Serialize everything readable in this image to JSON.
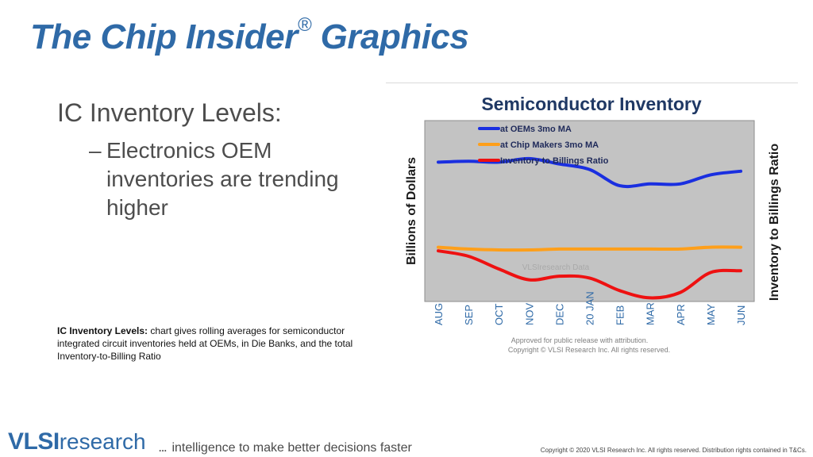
{
  "slide": {
    "title": "The Chip Insider",
    "title_mark": "®",
    "title_suffix": "Graphics",
    "bullet_main": "IC Inventory Levels:",
    "bullet_sub_dash": "–",
    "bullet_sub": "Electronics OEM inventories are trending higher",
    "caption_bold": "IC Inventory Levels:",
    "caption_text": "chart gives rolling averages for semiconductor integrated circuit inventories held at OEMs, in Die Banks, and the total Inventory-to-Billing Ratio"
  },
  "footer": {
    "logo_vlsi": "VLSI",
    "logo_research": "research",
    "tagline_dots": "...",
    "tagline": "intelligence to make better decisions faster",
    "copyright": "Copyright © 2020 VLSI Research Inc. All rights reserved. Distribution rights contained in T&Cs."
  },
  "colors": {
    "title_blue": "#2f6aa7",
    "plot_bg": "#c3c3c3",
    "oem": "#1a2fe0",
    "chipmakers": "#ff9f1a",
    "ratio": "#ee1111"
  },
  "chart_data": {
    "type": "line",
    "title": "Semiconductor Inventory",
    "ylabel_left": "Billions of Dollars",
    "ylabel_right": "Inventory  to Billings  Ratio",
    "categories": [
      "AUG",
      "SEP",
      "OCT",
      "NOV",
      "DEC",
      "20 JAN",
      "FEB",
      "MAR",
      "APR",
      "MAY",
      "JUN"
    ],
    "ylim": [
      0,
      100
    ],
    "grid": false,
    "legend_position": "top-left",
    "watermark": "VLSIresearch Data",
    "note_line1": "Approved  for public release  with attribution.",
    "note_line2": "Copyright ©  VLSI Research Inc.  All rights reserved.",
    "series": [
      {
        "name": "at OEMs 3mo MA",
        "values": [
          77,
          77.5,
          77,
          79,
          76,
          73,
          64,
          65,
          65,
          70,
          72
        ]
      },
      {
        "name": "at Chip Makers 3mo MA",
        "values": [
          30,
          29,
          28.5,
          28.5,
          29,
          29,
          29,
          29,
          29,
          30,
          30
        ]
      },
      {
        "name": "Inventory to Billings Ratio",
        "values": [
          28,
          25,
          18,
          12,
          14,
          13,
          6,
          2,
          5,
          16,
          17
        ]
      }
    ]
  }
}
